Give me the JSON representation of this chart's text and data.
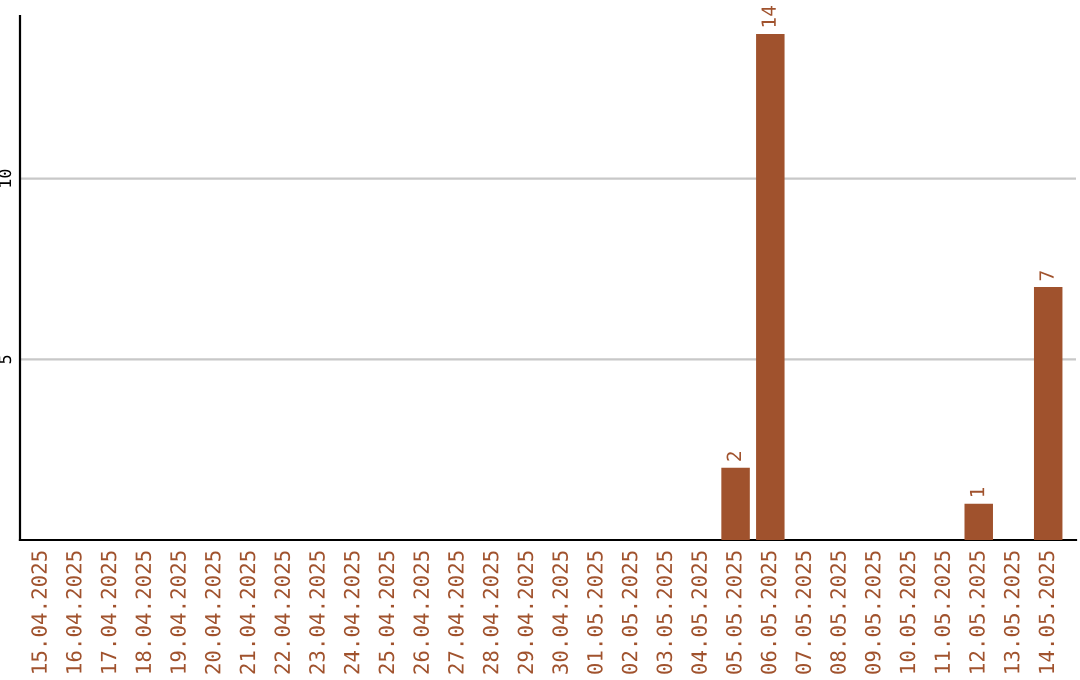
{
  "chart_data": {
    "type": "bar",
    "categories": [
      "15.04.2025",
      "16.04.2025",
      "17.04.2025",
      "18.04.2025",
      "19.04.2025",
      "20.04.2025",
      "21.04.2025",
      "22.04.2025",
      "23.04.2025",
      "24.04.2025",
      "25.04.2025",
      "26.04.2025",
      "27.04.2025",
      "28.04.2025",
      "29.04.2025",
      "30.04.2025",
      "01.05.2025",
      "02.05.2025",
      "03.05.2025",
      "04.05.2025",
      "05.05.2025",
      "06.05.2025",
      "07.05.2025",
      "08.05.2025",
      "09.05.2025",
      "10.05.2025",
      "11.05.2025",
      "12.05.2025",
      "13.05.2025",
      "14.05.2025"
    ],
    "values": [
      0,
      0,
      0,
      0,
      0,
      0,
      0,
      0,
      0,
      0,
      0,
      0,
      0,
      0,
      0,
      0,
      0,
      0,
      0,
      0,
      2,
      14,
      0,
      0,
      0,
      0,
      0,
      1,
      0,
      7
    ],
    "value_labels": [
      null,
      null,
      null,
      null,
      null,
      null,
      null,
      null,
      null,
      null,
      null,
      null,
      null,
      null,
      null,
      null,
      null,
      null,
      null,
      null,
      "2",
      "14",
      null,
      null,
      null,
      null,
      null,
      "1",
      null,
      "7"
    ],
    "color": "#a0522d",
    "ylim": [
      0,
      14.5
    ],
    "yticks": [
      5,
      10
    ],
    "grid": "y"
  }
}
